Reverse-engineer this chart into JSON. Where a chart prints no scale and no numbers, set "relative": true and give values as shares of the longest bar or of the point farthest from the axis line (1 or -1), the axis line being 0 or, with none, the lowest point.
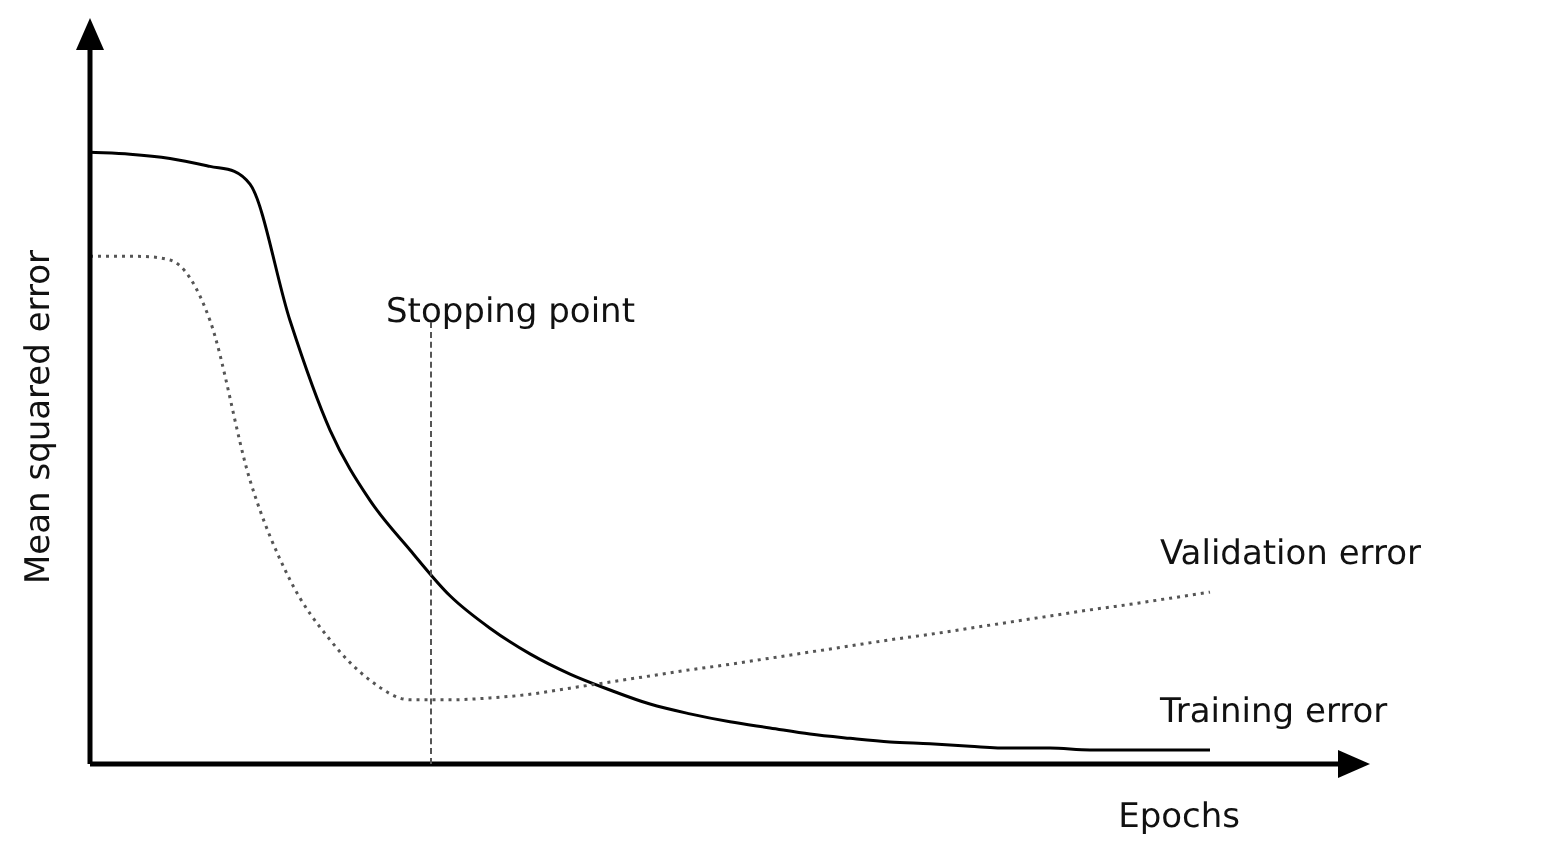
{
  "chart_data": {
    "type": "line",
    "relative": true,
    "xlabel": "Epochs",
    "ylabel": "Mean squared error",
    "categories": [
      null,
      null,
      null,
      null,
      null,
      null,
      null,
      null,
      null,
      null,
      null,
      null,
      null,
      null,
      null,
      null,
      null,
      null,
      null,
      null,
      null,
      null,
      null,
      null,
      null,
      null,
      null,
      null,
      null,
      null,
      null,
      null
    ],
    "series": [
      {
        "name": "Validation error",
        "color": "#555555",
        "line_style": "dotted",
        "values": [
          0.83,
          0.83,
          0.824,
          0.725,
          0.464,
          0.301,
          0.203,
          0.137,
          0.105,
          0.105,
          0.108,
          0.114,
          0.124,
          0.134,
          0.144,
          0.154,
          0.163,
          0.173,
          0.183,
          0.193,
          0.203,
          0.212,
          0.222,
          0.232,
          0.242,
          0.252,
          0.261,
          0.271,
          0.281,
          null,
          null,
          null
        ]
      },
      {
        "name": "Training error",
        "color": "#000000",
        "line_style": "solid",
        "values": [
          1,
          0.997,
          0.99,
          0.977,
          0.948,
          0.725,
          0.546,
          0.431,
          0.35,
          0.275,
          0.222,
          0.18,
          0.147,
          0.121,
          0.098,
          0.082,
          0.069,
          0.059,
          0.049,
          0.042,
          0.036,
          0.033,
          0.029,
          0.026,
          0.026,
          0.023,
          0.023,
          0.023,
          0.023,
          null,
          null,
          null
        ]
      }
    ],
    "annotations": [
      "Stopping point"
    ],
    "legend": false,
    "marker": "none"
  }
}
